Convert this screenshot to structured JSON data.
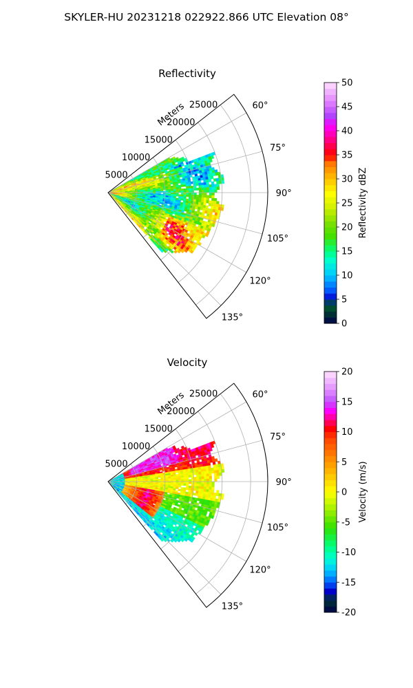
{
  "figure_title": "SKYLER-HU  20231218  022922.866 UTC Elevation 08°",
  "chart_data": [
    {
      "type": "heatmap",
      "subtype": "polar-sector",
      "title": "Reflectivity",
      "radial_label": "Meters",
      "radial_ticks": [
        "5000",
        "10000",
        "15000",
        "20000",
        "25000"
      ],
      "radial_tick_values": [
        5000,
        10000,
        15000,
        20000,
        25000
      ],
      "rlim": [
        0,
        28000
      ],
      "azimuth_range_deg": [
        52,
        142
      ],
      "azimuth_ticks": [
        "60°",
        "75°",
        "90°",
        "105°",
        "120°",
        "135°"
      ],
      "azimuth_tick_values": [
        60,
        75,
        90,
        105,
        120,
        135
      ],
      "grid": true,
      "colorbar": {
        "label": "Reflectivity dBZ",
        "range": [
          0,
          50
        ],
        "ticks": [
          "0",
          "5",
          "10",
          "15",
          "20",
          "25",
          "30",
          "35",
          "40",
          "45",
          "50"
        ],
        "tick_values": [
          0,
          5,
          10,
          15,
          20,
          25,
          30,
          35,
          40,
          45,
          50
        ],
        "stops": [
          {
            "v": 0,
            "c": "#00004a"
          },
          {
            "v": 2,
            "c": "#003333"
          },
          {
            "v": 4,
            "c": "#006030"
          },
          {
            "v": 5,
            "c": "#0000c8"
          },
          {
            "v": 7,
            "c": "#0060ff"
          },
          {
            "v": 10,
            "c": "#00c8ff"
          },
          {
            "v": 13,
            "c": "#00ffd0"
          },
          {
            "v": 15,
            "c": "#00ff80"
          },
          {
            "v": 18,
            "c": "#40e000"
          },
          {
            "v": 21,
            "c": "#80e000"
          },
          {
            "v": 24,
            "c": "#d0f000"
          },
          {
            "v": 27,
            "c": "#ffff00"
          },
          {
            "v": 30,
            "c": "#ffc000"
          },
          {
            "v": 33,
            "c": "#ff8000"
          },
          {
            "v": 35,
            "c": "#ff0000"
          },
          {
            "v": 38,
            "c": "#ff0080"
          },
          {
            "v": 41,
            "c": "#ff00ff"
          },
          {
            "v": 43,
            "c": "#b040ff"
          },
          {
            "v": 46,
            "c": "#e080ff"
          },
          {
            "v": 50,
            "c": "#ffe0ff"
          }
        ]
      }
    },
    {
      "type": "heatmap",
      "subtype": "polar-sector",
      "title": "Velocity",
      "radial_label": "Meters",
      "radial_ticks": [
        "5000",
        "10000",
        "15000",
        "20000",
        "25000"
      ],
      "radial_tick_values": [
        5000,
        10000,
        15000,
        20000,
        25000
      ],
      "rlim": [
        0,
        28000
      ],
      "azimuth_range_deg": [
        52,
        142
      ],
      "azimuth_ticks": [
        "60°",
        "75°",
        "90°",
        "105°",
        "120°",
        "135°"
      ],
      "azimuth_tick_values": [
        60,
        75,
        90,
        105,
        120,
        135
      ],
      "grid": true,
      "colorbar": {
        "label": "Velocity (m/s)",
        "range": [
          -20,
          20
        ],
        "ticks": [
          "-20",
          "-15",
          "-10",
          "-5",
          "0",
          "5",
          "10",
          "15",
          "20"
        ],
        "tick_values": [
          -20,
          -15,
          -10,
          -5,
          0,
          5,
          10,
          15,
          20
        ],
        "stops": [
          {
            "v": -20,
            "c": "#00004a"
          },
          {
            "v": -18,
            "c": "#003333"
          },
          {
            "v": -16.5,
            "c": "#0000c8"
          },
          {
            "v": -15,
            "c": "#0060ff"
          },
          {
            "v": -13,
            "c": "#00c8ff"
          },
          {
            "v": -11,
            "c": "#00ffd0"
          },
          {
            "v": -9,
            "c": "#00ff80"
          },
          {
            "v": -6,
            "c": "#30e000"
          },
          {
            "v": -3,
            "c": "#a0f000"
          },
          {
            "v": 0,
            "c": "#ffff00"
          },
          {
            "v": 3,
            "c": "#ffc000"
          },
          {
            "v": 6,
            "c": "#ff8000"
          },
          {
            "v": 9,
            "c": "#ff4000"
          },
          {
            "v": 10.5,
            "c": "#ff0000"
          },
          {
            "v": 12,
            "c": "#ff0080"
          },
          {
            "v": 13.5,
            "c": "#ff00ff"
          },
          {
            "v": 15,
            "c": "#c050ff"
          },
          {
            "v": 17,
            "c": "#e090ff"
          },
          {
            "v": 20,
            "c": "#ffe0ff"
          }
        ]
      }
    }
  ]
}
